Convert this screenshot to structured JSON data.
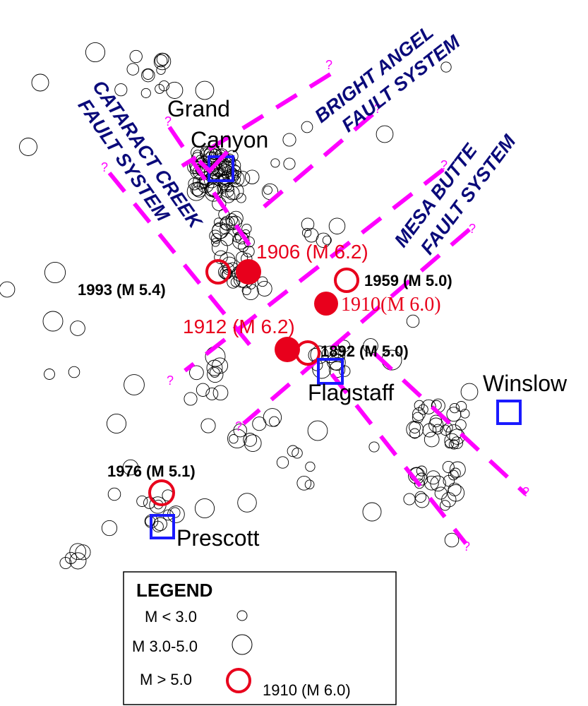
{
  "cities": {
    "grand_canyon_line1": "Grand",
    "grand_canyon_line2": "Canyon",
    "flagstaff": "Flagstaff",
    "winslow": "Winslow",
    "prescott": "Prescott"
  },
  "fault_systems": {
    "bright_angel_line1": "BRIGHT ANGEL",
    "bright_angel_line2": "FAULT SYSTEM",
    "cataract_creek_line1": "CATARACT CREEK",
    "cataract_creek_line2": "FAULT SYSTEM",
    "mesa_butte_line1": "MESA BUTTE",
    "mesa_butte_line2": "FAULT SYSTEM",
    "uncertain_marker": "?"
  },
  "earthquakes": {
    "q1906": "1906 (M 6.2)",
    "q1912": "1912 (M 6.2)",
    "q1910": "1910(M 6.0)",
    "q1959": "1959 (M 5.0)",
    "q1993": "1993 (M 5.4)",
    "q1892": "1892 (M 5.0)",
    "q1976": "1976 (M 5.1)"
  },
  "legend": {
    "title": "LEGEND",
    "small": "M < 3.0",
    "medium": "M 3.0-5.0",
    "large": "M > 5.0",
    "filled": "1910 (M 6.0)"
  },
  "colors": {
    "fault_line": "#ff00ff",
    "fault_label": "#0a0a7a",
    "large_quake": "#e8001c",
    "city_marker": "#1a1aff",
    "small_quake": "#000000"
  }
}
